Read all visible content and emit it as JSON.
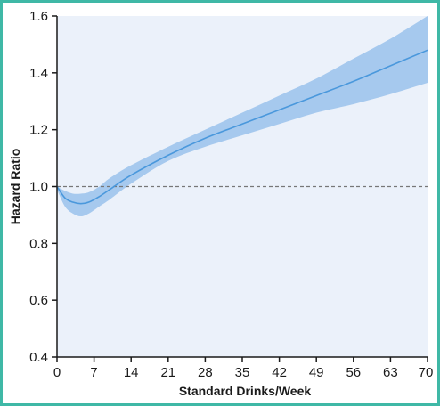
{
  "chart_data": {
    "type": "line",
    "title": "",
    "xlabel": "Standard Drinks/Week",
    "ylabel": "Hazard Ratio",
    "xlim": [
      0,
      70
    ],
    "ylim": [
      0.4,
      1.6
    ],
    "x_ticks": [
      0,
      7,
      14,
      21,
      28,
      35,
      42,
      49,
      56,
      63,
      70
    ],
    "x_tick_labels": [
      "0",
      "7",
      "14",
      "21",
      "28",
      "35",
      "42",
      "49",
      "56",
      "63",
      "70"
    ],
    "y_ticks": [
      0.4,
      0.6,
      0.8,
      1.0,
      1.2,
      1.4,
      1.6
    ],
    "y_tick_labels": [
      "0.4",
      "0.6",
      "0.8",
      "1.0",
      "1.2",
      "1.4",
      "1.6"
    ],
    "reference_line": {
      "y": 1.0,
      "style": "dashed"
    },
    "grid": false,
    "series": [
      {
        "x": [
          0,
          1.5,
          3,
          4.5,
          6,
          8,
          10,
          14,
          21,
          28,
          35,
          42,
          49,
          56,
          63,
          70
        ],
        "y": [
          1.0,
          0.96,
          0.945,
          0.94,
          0.945,
          0.965,
          0.99,
          1.04,
          1.11,
          1.17,
          1.22,
          1.27,
          1.32,
          1.37,
          1.425,
          1.48
        ],
        "lower": [
          0.99,
          0.93,
          0.905,
          0.895,
          0.905,
          0.93,
          0.955,
          1.01,
          1.09,
          1.14,
          1.18,
          1.22,
          1.26,
          1.29,
          1.325,
          1.365
        ],
        "upper": [
          1.0,
          0.985,
          0.975,
          0.975,
          0.98,
          1.0,
          1.03,
          1.075,
          1.14,
          1.2,
          1.26,
          1.32,
          1.38,
          1.45,
          1.52,
          1.6
        ]
      }
    ],
    "colors": {
      "plot_background": "#ebf1fa",
      "band": "#a6c9ee",
      "line": "#4a98dc",
      "reference": "#777777",
      "axis": "#1a1a1a",
      "frame": "#3fb8a6"
    }
  }
}
